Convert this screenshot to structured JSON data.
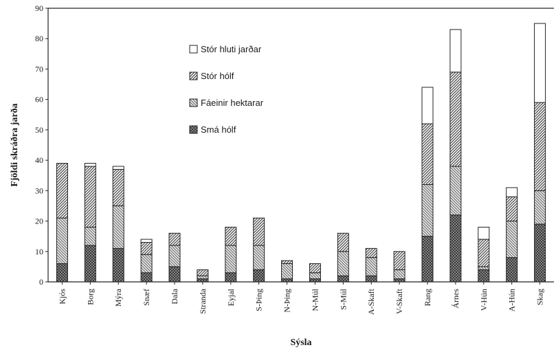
{
  "chart_data": {
    "type": "bar",
    "stacked": true,
    "title": "",
    "xlabel": "Sýsla",
    "ylabel": "Fjöldi skráðra jarða",
    "ylim": [
      0,
      90
    ],
    "yticks": [
      0,
      10,
      20,
      30,
      40,
      50,
      60,
      70,
      80,
      90
    ],
    "grid": false,
    "legend_position": "top-center",
    "categories": [
      "Kjós",
      "Borg",
      "Mýra",
      "Snæf",
      "Dala",
      "Strandа",
      "Eyjal",
      "S-Þing",
      "N-Þing",
      "N-Múl",
      "S-Múl",
      "A-Skaft",
      "V-Skaft",
      "Rang",
      "Árnes",
      "V-Hún",
      "A-Hún",
      "Skag"
    ],
    "series": [
      {
        "name": "Smá hólf",
        "pattern": "crosshatch",
        "values": [
          6,
          12,
          11,
          3,
          5,
          1,
          3,
          4,
          1,
          1,
          2,
          2,
          1,
          15,
          22,
          4,
          8,
          19
        ]
      },
      {
        "name": "Fáeinir hektarar",
        "pattern": "back-diagonal",
        "values": [
          15,
          6,
          14,
          6,
          7,
          1,
          9,
          8,
          5,
          2,
          8,
          6,
          3,
          17,
          16,
          1,
          12,
          11
        ]
      },
      {
        "name": "Stór hólf",
        "pattern": "forward-diagonal",
        "values": [
          18,
          20,
          12,
          4,
          4,
          2,
          6,
          9,
          1,
          3,
          6,
          3,
          6,
          20,
          31,
          9,
          8,
          29
        ]
      },
      {
        "name": "Stór hluti jarðar",
        "pattern": "blank",
        "values": [
          0,
          1,
          1,
          1,
          0,
          0,
          0,
          0,
          0,
          0,
          0,
          0,
          0,
          12,
          14,
          4,
          3,
          26
        ]
      }
    ]
  }
}
